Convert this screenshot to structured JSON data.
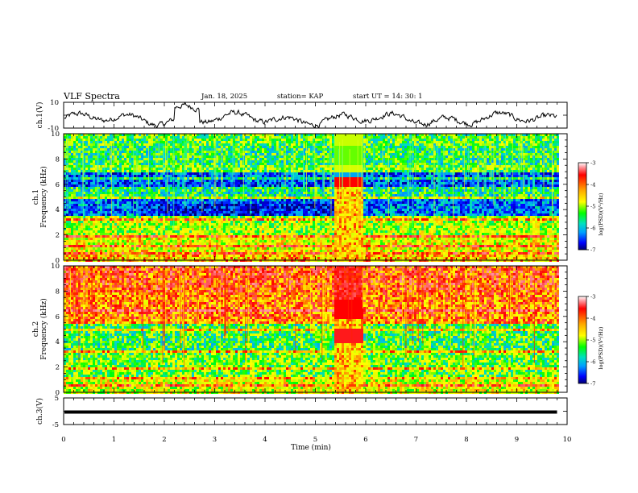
{
  "header": {
    "title": "VLF Spectra",
    "date": "Jan. 18, 2025",
    "station": "station= KAP",
    "start": "start  UT =   14: 30: 1"
  },
  "colorbar": {
    "label": "log(PSD)(V²/Hz)",
    "ticks": [
      "-3",
      "-4",
      "-5",
      "-6",
      "-7"
    ],
    "colors": [
      "#b00000",
      "#ff0000",
      "#ff8c00",
      "#ffff00",
      "#00ff00",
      "#00d0c0",
      "#00a0ff",
      "#0000ff",
      "#000080"
    ]
  },
  "chart_data": [
    {
      "type": "line",
      "panel": "ch1-waveform",
      "ylabel": "ch.1(V)",
      "ylim": [
        -10,
        10
      ],
      "yticks": [
        "10",
        "-10"
      ],
      "xlim": [
        0,
        10
      ]
    },
    {
      "type": "heatmap",
      "panel": "ch1-spectrogram",
      "ylabel": "ch.1\nFrequency (kHz)",
      "ylabel_lines": [
        "ch.1",
        "Frequency (kHz)"
      ],
      "ylim": [
        0,
        10
      ],
      "yticks": [
        "10",
        "8",
        "6",
        "4",
        "2",
        "0"
      ],
      "xlim": [
        0,
        10
      ],
      "data_end_min": 9.8,
      "burst_interval_min": [
        5.35,
        5.92
      ]
    },
    {
      "type": "heatmap",
      "panel": "ch2-spectrogram",
      "ylabel": "ch.2\nFrequency (kHz)",
      "ylabel_lines": [
        "ch.2",
        "Frequency (kHz)"
      ],
      "ylim": [
        0,
        10
      ],
      "yticks": [
        "10",
        "8",
        "6",
        "4",
        "2",
        "0"
      ],
      "xlim": [
        0,
        10
      ],
      "data_end_min": 9.8,
      "burst_interval_min": [
        5.35,
        5.92
      ]
    },
    {
      "type": "line",
      "panel": "ch3-waveform",
      "ylabel": "ch.3(V)",
      "ylim": [
        -5,
        5
      ],
      "yticks": [
        "5",
        "-5"
      ],
      "xlim": [
        0,
        10
      ],
      "level_V": [
        -0.9,
        0.3
      ]
    }
  ],
  "xaxis": {
    "label": "Time  (min)",
    "ticks": [
      "0",
      "1",
      "2",
      "3",
      "4",
      "5",
      "6",
      "7",
      "8",
      "9",
      "10"
    ]
  }
}
